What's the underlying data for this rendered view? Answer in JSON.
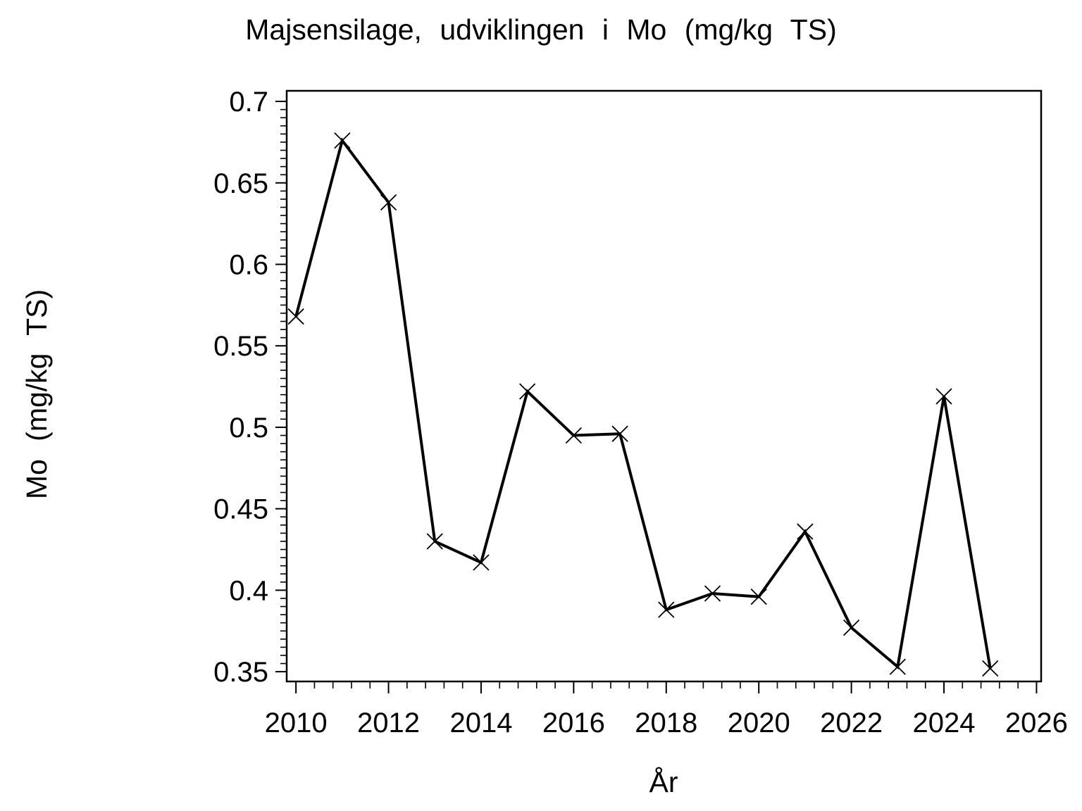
{
  "page": {
    "background": "#ffffff",
    "foreground": "#000000"
  },
  "chart_data": {
    "type": "line",
    "title": "Majsensilage, udviklingen i Mo (mg/kg TS)",
    "xlabel": "År",
    "ylabel": "Mo (mg/kg TS)",
    "x": [
      2010,
      2011,
      2012,
      2013,
      2014,
      2015,
      2016,
      2017,
      2018,
      2019,
      2020,
      2021,
      2022,
      2023,
      2024,
      2025
    ],
    "values": [
      0.568,
      0.676,
      0.638,
      0.43,
      0.417,
      0.522,
      0.495,
      0.496,
      0.388,
      0.398,
      0.396,
      0.436,
      0.377,
      0.353,
      0.519,
      0.352
    ],
    "series_name": "Mo (mg/kg TS)",
    "marker": "x-cross",
    "line_color": "#000000",
    "background": "#ffffff",
    "xlim": [
      2009.8,
      2026.1
    ],
    "ylim": [
      0.344,
      0.7065
    ],
    "x_major_ticks": [
      2010,
      2012,
      2014,
      2016,
      2018,
      2020,
      2022,
      2024,
      2026
    ],
    "x_tick_labels": [
      "2010",
      "2012",
      "2014",
      "2016",
      "2018",
      "2020",
      "2022",
      "2024",
      "2026"
    ],
    "x_minor_step": 0.4,
    "x_minor_range": [
      2010,
      2026
    ],
    "y_major_ticks": [
      0.35,
      0.4,
      0.45,
      0.5,
      0.55,
      0.6,
      0.65,
      0.7
    ],
    "y_tick_labels": [
      "0.35",
      "0.4",
      "0.45",
      "0.5",
      "0.55",
      "0.6",
      "0.65",
      "0.7"
    ],
    "y_minor_step": 0.005,
    "y_minor_range": [
      0.35,
      0.7
    ],
    "grid": false,
    "legend": "none"
  }
}
